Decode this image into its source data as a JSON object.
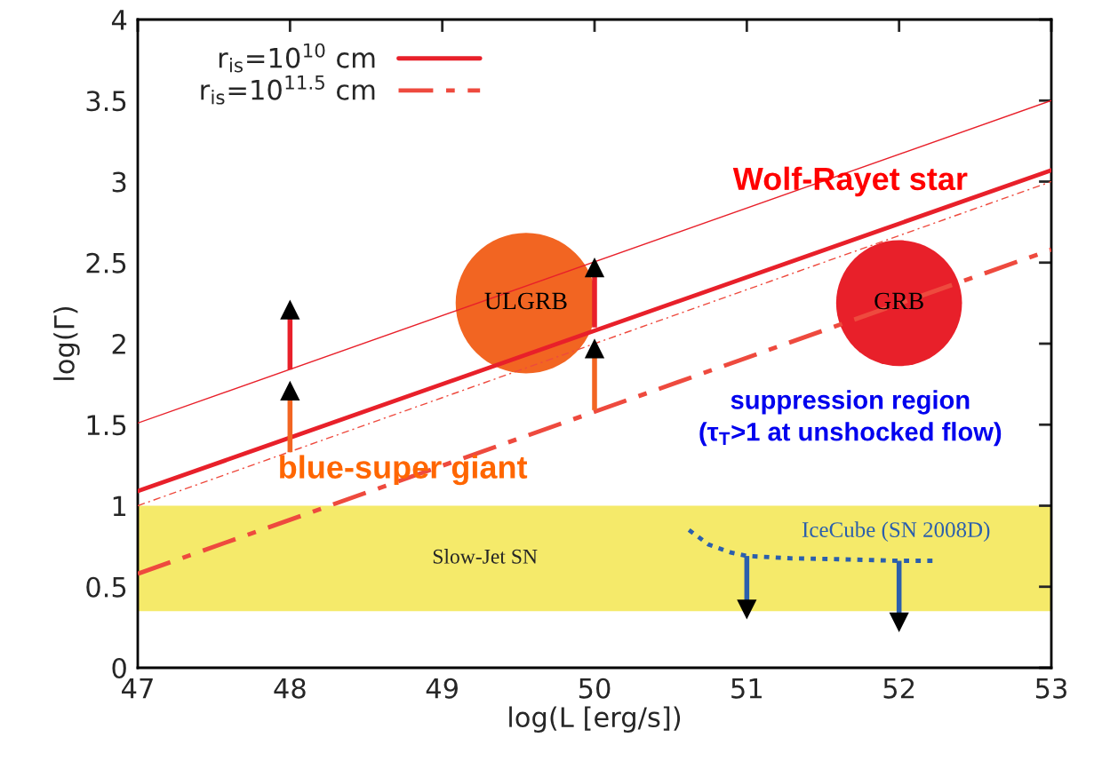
{
  "chart_data": {
    "type": "line",
    "xlabel": "log(L [erg/s])",
    "ylabel": "log(Γ)",
    "xlim": [
      47,
      53
    ],
    "ylim": [
      0,
      4
    ],
    "xticks": [
      47,
      48,
      49,
      50,
      51,
      52,
      53
    ],
    "yticks": [
      {
        "value": 0,
        "label": "0"
      },
      {
        "value": 0.5,
        "label": "0.5"
      },
      {
        "value": 1,
        "label": "1"
      },
      {
        "value": 1.5,
        "label": "1.5"
      },
      {
        "value": 2,
        "label": "2"
      },
      {
        "value": 2.5,
        "label": "2.5"
      },
      {
        "value": 3,
        "label": "3"
      },
      {
        "value": 3.5,
        "label": "3.5"
      },
      {
        "value": 4,
        "label": "4"
      }
    ],
    "grid": false,
    "legend": "top left",
    "series": [
      {
        "name": "r$_{is}$=10$^{10}$ cm",
        "color": "#e8202a",
        "line_style": "solid",
        "x": [
          47,
          53
        ],
        "values": [
          1.09,
          3.07
        ]
      },
      {
        "name": "r$_{is}$=10$^{11.5}$ cm",
        "color": "#ee4a3e",
        "line_style": "dashdot",
        "x": [
          47,
          53
        ],
        "values": [
          0.58,
          2.58
        ]
      },
      {
        "color": "#e8202a",
        "line_style": "solid",
        "x": [
          47,
          53
        ],
        "values": [
          1.51,
          3.5
        ]
      },
      {
        "color": "#ee4a3e",
        "line_style": "dashdot",
        "x": [
          47,
          53
        ],
        "values": [
          1.0,
          3.0
        ]
      },
      {
        "color": "#2b5fad",
        "line_style": "dotted",
        "x": [
          50.62,
          50.75,
          50.9,
          51.0,
          51.3,
          51.6,
          52.0,
          52.23
        ],
        "values": [
          0.85,
          0.76,
          0.71,
          0.69,
          0.675,
          0.67,
          0.66,
          0.66
        ]
      },
      {
        "marker": "triangle",
        "color": "#e8202a",
        "x": [
          48,
          48
        ],
        "values": [
          1.84,
          2.21
        ]
      },
      {
        "marker": "triangle",
        "color": "#f26522",
        "x": [
          48,
          48
        ],
        "values": [
          1.33,
          1.71
        ]
      },
      {
        "marker": "triangle",
        "color": "#e8202a",
        "x": [
          50,
          50
        ],
        "values": [
          2.1,
          2.47
        ]
      },
      {
        "marker": "triangle",
        "color": "#f26522",
        "x": [
          50,
          50
        ],
        "values": [
          1.59,
          1.97
        ]
      },
      {
        "marker": "triangle",
        "color": "#2b5fad",
        "x": [
          51,
          51
        ],
        "values": [
          0.69,
          0.36
        ]
      },
      {
        "marker": "triangle",
        "color": "#2b5fad",
        "x": [
          52,
          52
        ],
        "values": [
          0.66,
          0.28
        ]
      },
      {
        "type": "bubble",
        "color": "#f26522",
        "x": [
          49.55
        ],
        "values": [
          2.25
        ],
        "sizes": [
          1
        ]
      },
      {
        "type": "bubble",
        "color": "#e8202a",
        "x": [
          52.0
        ],
        "values": [
          2.25
        ],
        "sizes": [
          0.8
        ]
      }
    ],
    "bands": [
      {
        "axis": "y",
        "from": 0.35,
        "to": 1.0,
        "label": "Slow-Jet SN",
        "color": "#f5ea6a"
      }
    ],
    "annotations": [
      {
        "text": "ULGRB",
        "x": 49.55,
        "y": 2.25
      },
      {
        "text": "GRB",
        "x": 52.0,
        "y": 2.25
      },
      "Wolf-Rayet star",
      "blue-super giant",
      "suppression region\n(τ$_{T}$>1 at unshocked flow)",
      "IceCube (SN 2008D)"
    ]
  }
}
